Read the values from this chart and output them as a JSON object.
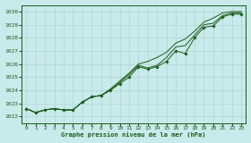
{
  "title": "Graphe pression niveau de la mer (hPa)",
  "bg_color": "#c8eaea",
  "grid_color": "#b0d4d4",
  "line_color": "#1a5c1a",
  "marker_color": "#1a5c1a",
  "xlim": [
    -0.5,
    23.5
  ],
  "ylim": [
    1021.5,
    1030.5
  ],
  "yticks": [
    1022,
    1023,
    1024,
    1025,
    1026,
    1027,
    1028,
    1029,
    1030
  ],
  "xticks": [
    0,
    1,
    2,
    3,
    4,
    5,
    6,
    7,
    8,
    9,
    10,
    11,
    12,
    13,
    14,
    15,
    16,
    17,
    18,
    19,
    20,
    21,
    22,
    23
  ],
  "series1": [
    1022.6,
    1022.3,
    1022.5,
    1022.6,
    1022.5,
    1022.5,
    1023.1,
    1023.5,
    1023.6,
    1024.0,
    1024.5,
    1025.0,
    1025.8,
    1025.6,
    1025.8,
    1026.2,
    1027.0,
    1026.8,
    1028.0,
    1028.8,
    1028.9,
    1029.6,
    1029.8,
    1029.8
  ],
  "series2": [
    1022.6,
    1022.3,
    1022.5,
    1022.6,
    1022.5,
    1022.5,
    1023.1,
    1023.5,
    1023.6,
    1024.0,
    1024.6,
    1025.2,
    1025.9,
    1025.7,
    1025.9,
    1026.5,
    1027.3,
    1027.4,
    1028.2,
    1029.0,
    1029.1,
    1029.7,
    1029.9,
    1029.9
  ],
  "series3": [
    1022.6,
    1022.3,
    1022.5,
    1022.6,
    1022.5,
    1022.5,
    1023.1,
    1023.5,
    1023.6,
    1024.1,
    1024.7,
    1025.3,
    1026.0,
    1026.2,
    1026.5,
    1026.9,
    1027.6,
    1027.9,
    1028.5,
    1029.2,
    1029.5,
    1029.9,
    1030.0,
    1030.0
  ]
}
